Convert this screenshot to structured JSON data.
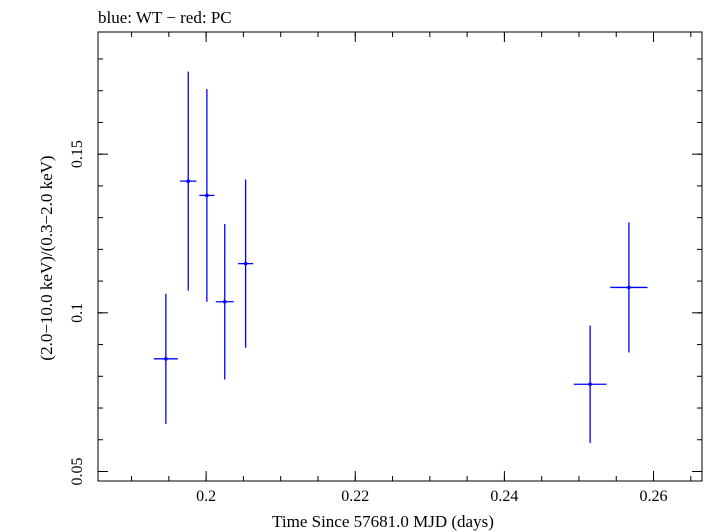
{
  "chart_data": {
    "type": "scatter",
    "title": "blue: WT − red: PC",
    "xlabel": "Time Since 57681.0 MJD (days)",
    "ylabel": "(2.0−10.0 keV)/(0.3−2.0 keV)",
    "xlim": [
      0.1855,
      0.2665
    ],
    "ylim": [
      0.047,
      0.1885
    ],
    "x_ticks": [
      {
        "value": 0.2,
        "label": "0.2"
      },
      {
        "value": 0.22,
        "label": "0.22"
      },
      {
        "value": 0.24,
        "label": "0.24"
      },
      {
        "value": 0.26,
        "label": "0.26"
      }
    ],
    "y_ticks": [
      {
        "value": 0.05,
        "label": "0.05"
      },
      {
        "value": 0.1,
        "label": "0.1"
      },
      {
        "value": 0.15,
        "label": "0.15"
      }
    ],
    "x_minor_step": 0.005,
    "y_minor_step": 0.01,
    "grid": false,
    "series": [
      {
        "color": "#0000ff",
        "points": [
          {
            "x": 0.1946,
            "xerr": 0.0016,
            "y": 0.0855,
            "yerr_lo": 0.0205,
            "yerr_hi": 0.0205
          },
          {
            "x": 0.1976,
            "xerr": 0.0011,
            "y": 0.1415,
            "yerr_lo": 0.0345,
            "yerr_hi": 0.0345
          },
          {
            "x": 0.2001,
            "xerr": 0.001,
            "y": 0.137,
            "yerr_lo": 0.0335,
            "yerr_hi": 0.0335
          },
          {
            "x": 0.2025,
            "xerr": 0.0012,
            "y": 0.1035,
            "yerr_lo": 0.0245,
            "yerr_hi": 0.0245
          },
          {
            "x": 0.2053,
            "xerr": 0.001,
            "y": 0.1155,
            "yerr_lo": 0.0265,
            "yerr_hi": 0.0265
          },
          {
            "x": 0.2515,
            "xerr": 0.0022,
            "y": 0.0775,
            "yerr_lo": 0.0185,
            "yerr_hi": 0.0185
          },
          {
            "x": 0.2567,
            "xerr": 0.0025,
            "y": 0.108,
            "yerr_lo": 0.0205,
            "yerr_hi": 0.0205
          }
        ]
      }
    ]
  }
}
